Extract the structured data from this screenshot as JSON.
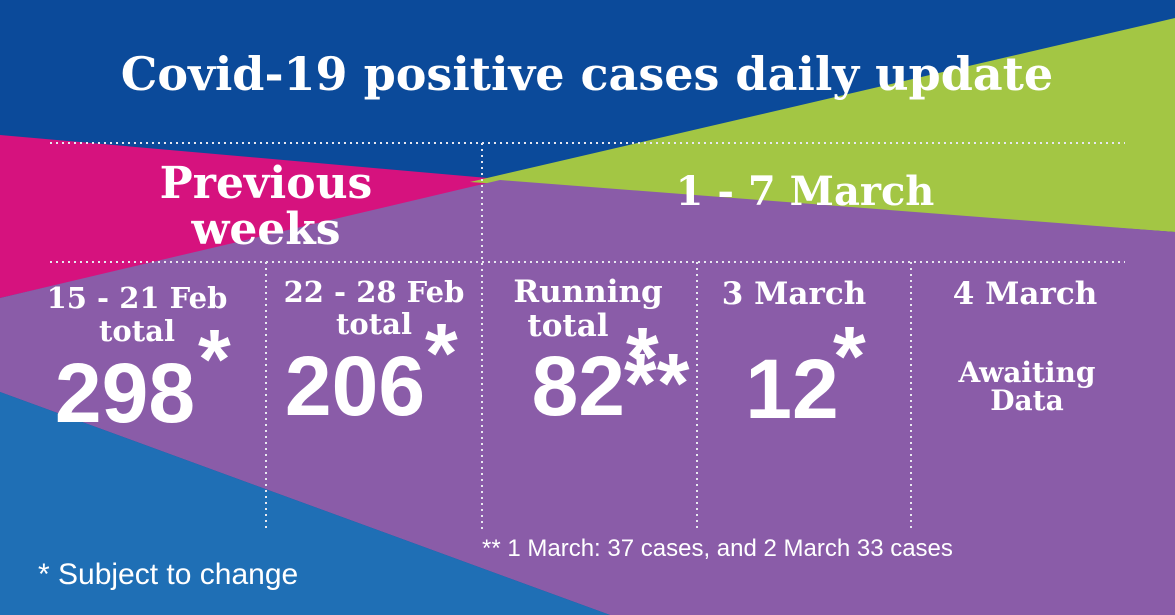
{
  "title": "Covid-19 positive cases daily update",
  "groups": [
    {
      "lines": [
        "Previous",
        "weeks"
      ]
    },
    {
      "lines": [
        "1 - 7 March"
      ]
    }
  ],
  "columns": [
    {
      "heading": [
        "15 - 21 Feb",
        "total"
      ],
      "value": 298,
      "marks": [
        "*"
      ]
    },
    {
      "heading": [
        "22 - 28 Feb",
        "total"
      ],
      "value": 206,
      "marks": [
        "*"
      ]
    },
    {
      "heading": [
        "Running",
        "total"
      ],
      "value": 82,
      "marks": [
        "*",
        "**"
      ]
    },
    {
      "heading": [
        "3 March"
      ],
      "value": 12,
      "marks": [
        "*"
      ]
    },
    {
      "heading": [
        "4 March"
      ],
      "status": [
        "Awaiting",
        "Data"
      ]
    }
  ],
  "footnotes": [
    "** 1 March: 37 cases, and 2 March 33 cases",
    "* Subject to change"
  ]
}
